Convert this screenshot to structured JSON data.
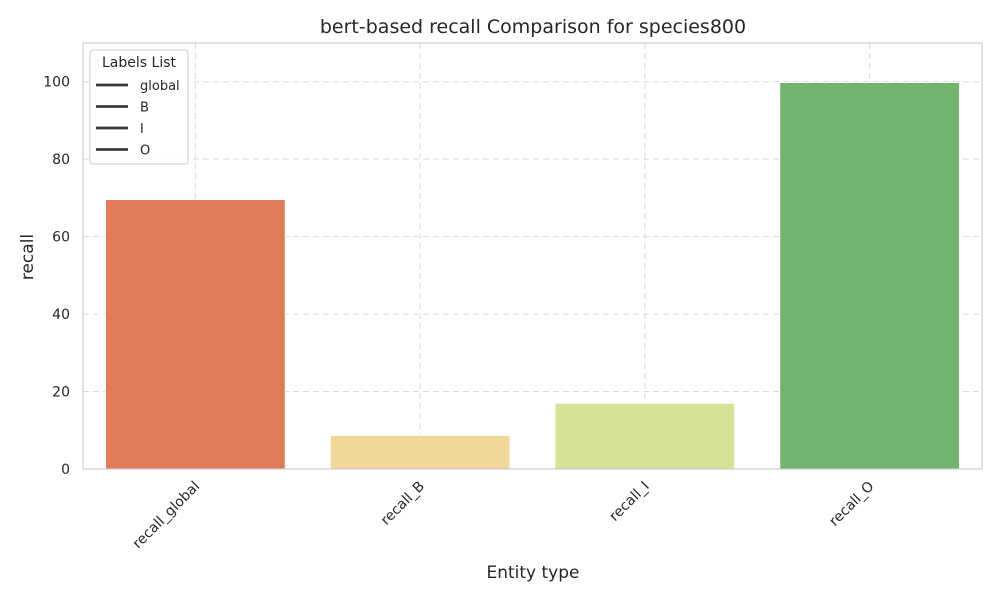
{
  "chart_data": {
    "type": "bar",
    "title": "bert-based recall Comparison for species800",
    "xlabel": "Entity type",
    "ylabel": "recall",
    "categories": [
      "recall_global",
      "recall_B",
      "recall_I",
      "recall_O"
    ],
    "values": [
      69.6,
      8.7,
      17.0,
      99.8
    ],
    "colors": [
      "#e07b59",
      "#f2d898",
      "#d4e396",
      "#72b36f"
    ],
    "ylim": [
      0,
      110
    ],
    "yticks": [
      "0",
      "20",
      "40",
      "60",
      "80",
      "100"
    ],
    "grid": true,
    "legend": {
      "title": "Labels List",
      "placement": "top-left",
      "entries": [
        "global",
        "B",
        "I",
        "O"
      ]
    }
  }
}
